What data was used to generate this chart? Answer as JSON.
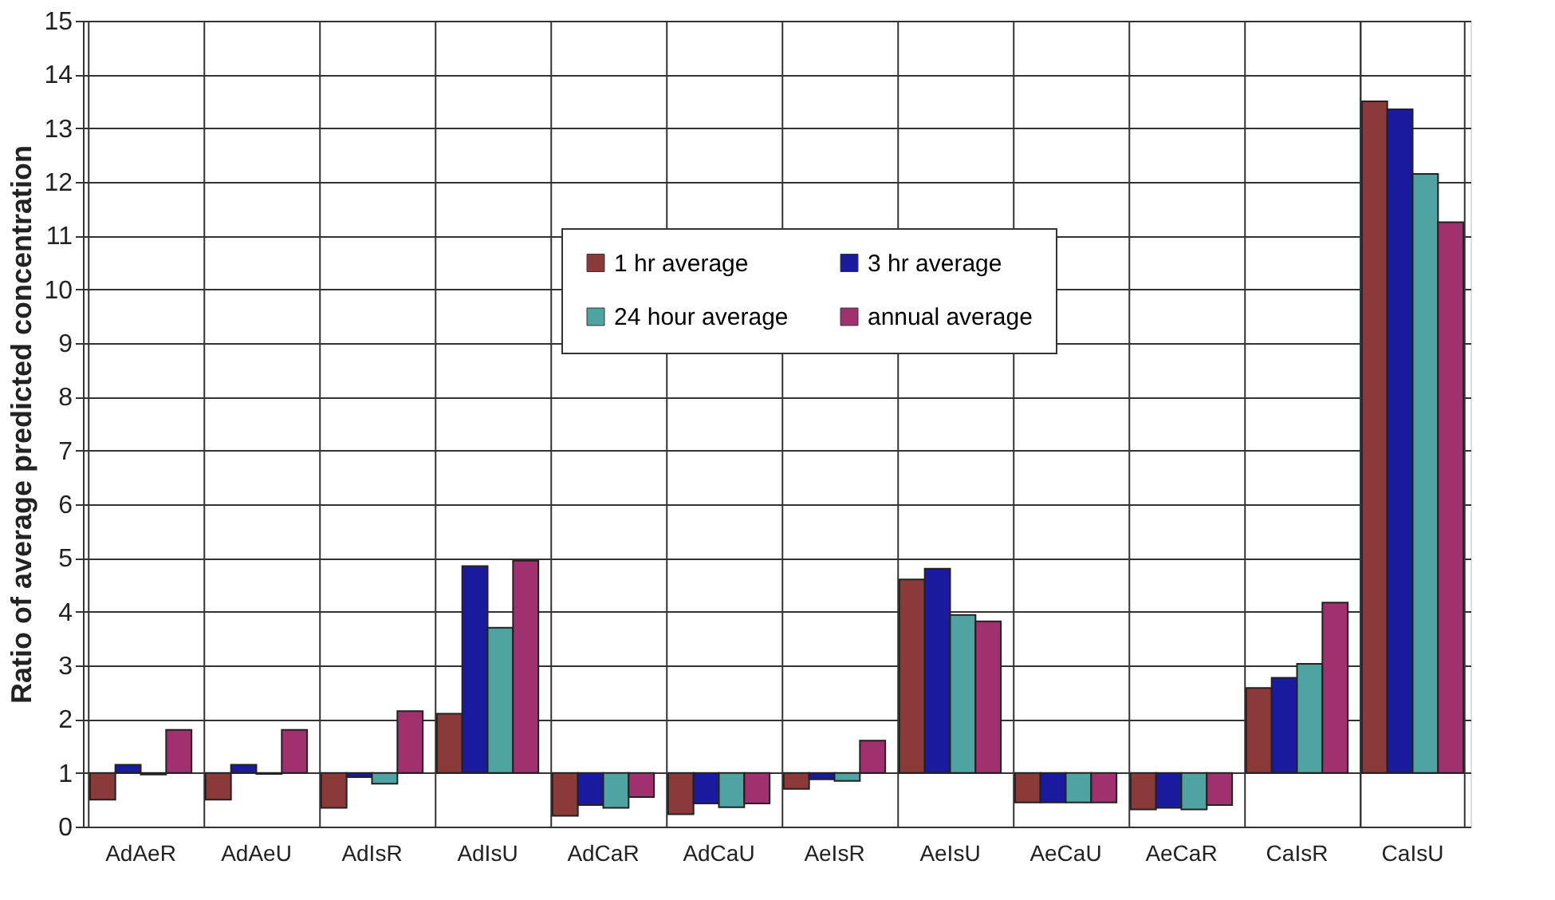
{
  "chart_data": {
    "type": "bar",
    "ylabel": "Ratio of average predicted concentration",
    "categories": [
      "AdAeR",
      "AdAeU",
      "AdIsR",
      "AdIsU",
      "AdCaR",
      "AdCaU",
      "AeIsR",
      "AeIsU",
      "AeCaU",
      "AeCaR",
      "CaIsR",
      "CaIsU"
    ],
    "series": [
      {
        "name": "1 hr average",
        "color": "#8b3a3a",
        "base": [
          1,
          1,
          1,
          1,
          1,
          1,
          1,
          1,
          1,
          1,
          1,
          1
        ],
        "values": [
          -0.5,
          -0.5,
          -0.65,
          1.1,
          -0.8,
          -0.77,
          -0.3,
          3.6,
          -0.55,
          -0.68,
          1.58,
          12.5
        ]
      },
      {
        "name": "3 hr average",
        "color": "#1a1a9e",
        "base": [
          1,
          1,
          1,
          1,
          1,
          1,
          1,
          1,
          1,
          1,
          1,
          1
        ],
        "values": [
          0.15,
          0.15,
          -0.08,
          3.85,
          -0.6,
          -0.57,
          -0.12,
          3.8,
          -0.55,
          -0.65,
          1.77,
          12.35
        ]
      },
      {
        "name": "24 hour average",
        "color": "#4fa3a0",
        "base": [
          1,
          1,
          1,
          1,
          1,
          1,
          1,
          1,
          1,
          1,
          1,
          1
        ],
        "values": [
          -0.03,
          -0.02,
          -0.2,
          2.7,
          -0.65,
          -0.64,
          -0.15,
          2.94,
          -0.55,
          -0.68,
          2.03,
          11.15
        ]
      },
      {
        "name": "annual average",
        "color": "#a0306e",
        "base": [
          1,
          1,
          1,
          1,
          1,
          1,
          1,
          1,
          1,
          1,
          1,
          1
        ],
        "values": [
          0.8,
          0.8,
          1.15,
          3.95,
          -0.45,
          -0.57,
          0.6,
          2.82,
          -0.55,
          -0.6,
          3.17,
          10.25
        ]
      }
    ],
    "ylim": [
      0,
      15
    ],
    "yticks": [
      0,
      1,
      2,
      3,
      4,
      5,
      6,
      7,
      8,
      9,
      10,
      11,
      12,
      13,
      14,
      15
    ],
    "grid": true,
    "legend": "top"
  }
}
